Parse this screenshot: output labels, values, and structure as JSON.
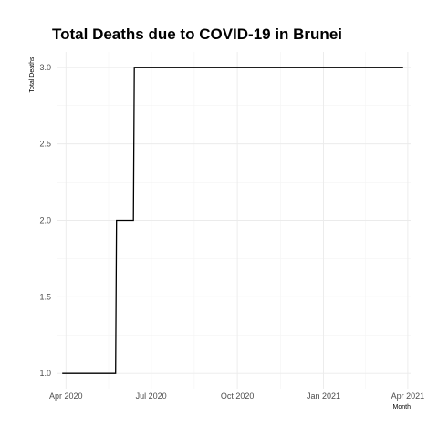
{
  "chart_data": {
    "type": "line",
    "title": "Total Deaths due to COVID-19 in Brunei",
    "xlabel": "Month",
    "ylabel": "Total Deaths",
    "x_ticks": [
      {
        "date": "2020-04-01",
        "label": "Apr 2020"
      },
      {
        "date": "2020-07-01",
        "label": "Jul 2020"
      },
      {
        "date": "2020-10-01",
        "label": "Oct 2020"
      },
      {
        "date": "2021-01-01",
        "label": "Jan 2021"
      },
      {
        "date": "2021-04-01",
        "label": "Apr 2021"
      }
    ],
    "y_ticks": [
      1.0,
      1.5,
      2.0,
      2.5,
      3.0
    ],
    "y_tick_labels": [
      "1.0",
      "1.5",
      "2.0",
      "2.5",
      "3.0"
    ],
    "xlim": [
      "2020-03-22",
      "2021-04-04"
    ],
    "ylim": [
      0.9,
      3.1
    ],
    "grid": true,
    "series": [
      {
        "color": "#000000",
        "points": [
          {
            "x": "2020-03-28",
            "y": 1
          },
          {
            "x": "2020-05-24",
            "y": 1
          },
          {
            "x": "2020-05-25",
            "y": 2
          },
          {
            "x": "2020-06-12",
            "y": 2
          },
          {
            "x": "2020-06-13",
            "y": 3
          },
          {
            "x": "2021-03-27",
            "y": 3
          }
        ]
      }
    ]
  }
}
